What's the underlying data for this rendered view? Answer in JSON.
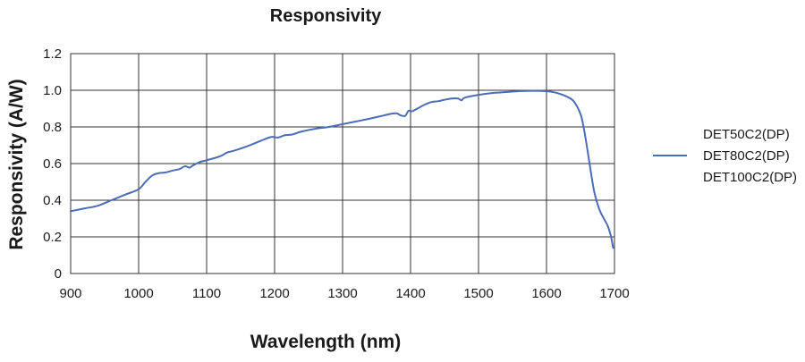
{
  "chart_data": {
    "type": "line",
    "title": "Responsivity",
    "xlabel": "Wavelength (nm)",
    "ylabel": "Responsivity (A/W)",
    "xlim": [
      900,
      1700
    ],
    "ylim": [
      0,
      1.2
    ],
    "xticks": [
      900,
      1000,
      1100,
      1200,
      1300,
      1400,
      1500,
      1600,
      1700
    ],
    "xtick_labels": [
      "900",
      "1000",
      "1100",
      "1200",
      "1300",
      "1400",
      "1500",
      "1600",
      "1700"
    ],
    "yticks": [
      0,
      0.2,
      0.4,
      0.6,
      0.8,
      1.0,
      1.2
    ],
    "ytick_labels": [
      "0",
      "0.2",
      "0.4",
      "0.6",
      "0.8",
      "1.0",
      "1.2"
    ],
    "grid": true,
    "legend_position": "right",
    "legend_color": "#4b6cb7",
    "legend_labels": [
      "DET50C2(DP)",
      "DET80C2(DP)",
      "DET100C2(DP)"
    ],
    "series": [
      {
        "name": "DET50C2(DP) / DET80C2(DP) / DET100C2(DP)",
        "color": "#4b6cb7",
        "x": [
          900,
          920,
          940,
          960,
          980,
          1000,
          1010,
          1020,
          1030,
          1040,
          1050,
          1060,
          1068,
          1075,
          1080,
          1090,
          1100,
          1120,
          1130,
          1140,
          1160,
          1180,
          1195,
          1205,
          1215,
          1225,
          1240,
          1260,
          1280,
          1300,
          1320,
          1340,
          1360,
          1372,
          1380,
          1385,
          1392,
          1397,
          1402,
          1410,
          1420,
          1430,
          1440,
          1450,
          1460,
          1470,
          1475,
          1480,
          1500,
          1520,
          1540,
          1560,
          1580,
          1600,
          1610,
          1620,
          1630,
          1640,
          1650,
          1655,
          1660,
          1665,
          1670,
          1675,
          1680,
          1690,
          1695,
          1698
        ],
        "y": [
          0.34,
          0.355,
          0.37,
          0.4,
          0.43,
          0.46,
          0.5,
          0.535,
          0.548,
          0.552,
          0.562,
          0.57,
          0.585,
          0.578,
          0.59,
          0.608,
          0.618,
          0.64,
          0.66,
          0.67,
          0.695,
          0.725,
          0.745,
          0.742,
          0.755,
          0.758,
          0.775,
          0.79,
          0.8,
          0.815,
          0.83,
          0.845,
          0.862,
          0.872,
          0.874,
          0.864,
          0.86,
          0.888,
          0.885,
          0.9,
          0.92,
          0.935,
          0.94,
          0.948,
          0.955,
          0.955,
          0.945,
          0.96,
          0.975,
          0.985,
          0.99,
          0.995,
          0.997,
          0.995,
          0.99,
          0.98,
          0.965,
          0.94,
          0.87,
          0.79,
          0.68,
          0.56,
          0.45,
          0.38,
          0.33,
          0.26,
          0.2,
          0.14
        ]
      }
    ]
  }
}
